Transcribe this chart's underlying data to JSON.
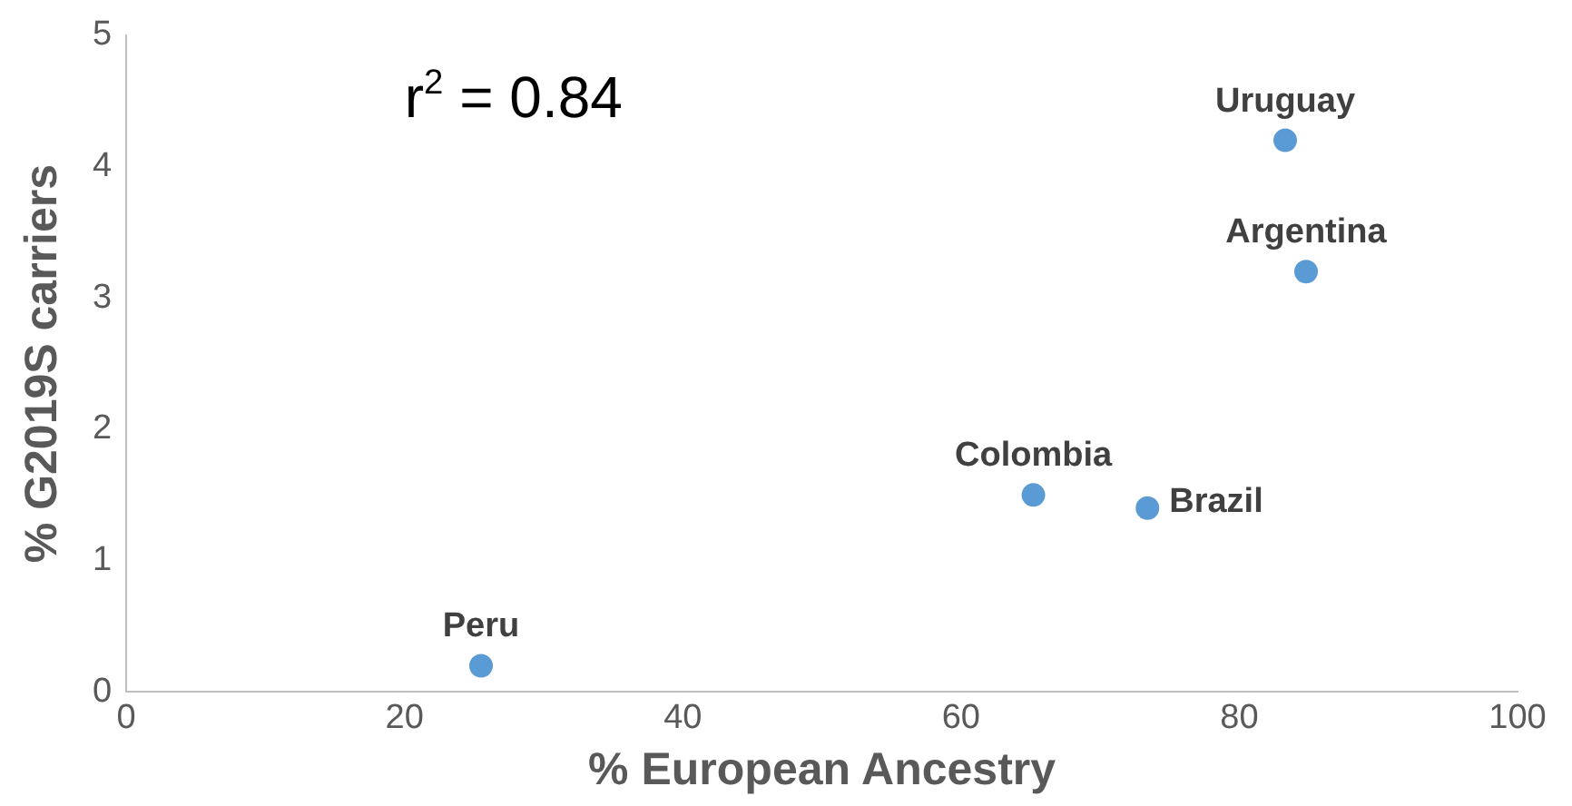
{
  "chart_data": {
    "type": "scatter",
    "xlabel": "% European Ancestry",
    "ylabel": "% G2019S carriers",
    "x": [
      25.5,
      65.2,
      73.4,
      83.3,
      84.8
    ],
    "values": [
      0.2,
      1.5,
      1.4,
      4.2,
      3.2
    ],
    "color": "#5b9bd5",
    "marker": "circle",
    "xlim": [
      0,
      100
    ],
    "xticks": [
      0,
      20,
      40,
      60,
      80,
      100
    ],
    "ylim": [
      0,
      5
    ],
    "yticks": [
      0,
      1,
      2,
      3,
      4,
      5
    ],
    "grid": false,
    "legend": false,
    "annotations": [
      "r$^{2}$ = 0.84",
      {
        "text": "Peru",
        "x": 25.5,
        "y": 0.2
      },
      {
        "text": "Colombia",
        "x": 65.2,
        "y": 1.5
      },
      {
        "text": "Brazil",
        "x": 73.4,
        "y": 1.4
      },
      {
        "text": "Uruguay",
        "x": 83.3,
        "y": 4.2
      },
      {
        "text": "Argentina",
        "x": 84.8,
        "y": 3.2
      }
    ]
  }
}
